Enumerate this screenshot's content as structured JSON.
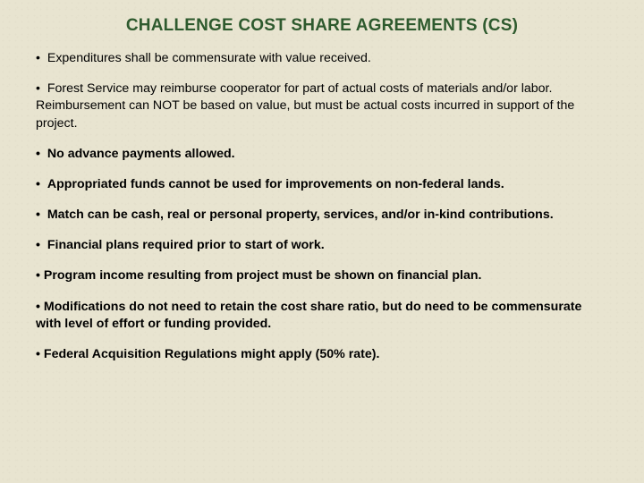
{
  "title": "CHALLENGE COST SHARE AGREEMENTS (CS)",
  "title_color": "#2e5a2e",
  "background_color": "#e8e4d0",
  "text_color": "#000000",
  "bullets": [
    {
      "text": "•  Expenditures shall be commensurate with value received.",
      "bold": false
    },
    {
      "text": "•  Forest Service may reimburse cooperator for part of actual costs of materials and/or labor.  Reimbursement can NOT be based on value, but must be actual costs incurred in support of the project.",
      "bold": false
    },
    {
      "text": "•  No advance payments allowed.",
      "bold": true
    },
    {
      "text": "•  Appropriated funds cannot be used for improvements on non-federal lands.",
      "bold": true
    },
    {
      "text": "•  Match can be cash, real or personal property, services, and/or in-kind contributions.",
      "bold": true
    },
    {
      "text": "•  Financial plans required prior to start of work.",
      "bold": true
    },
    {
      "text": "• Program income resulting from project must be shown on financial plan.",
      "bold": true
    },
    {
      "text": "• Modifications do not need to retain the cost share ratio, but do need to be commensurate with level of effort or funding provided.",
      "bold": true
    },
    {
      "text": "• Federal Acquisition Regulations might apply (50% rate).",
      "bold": true
    }
  ]
}
